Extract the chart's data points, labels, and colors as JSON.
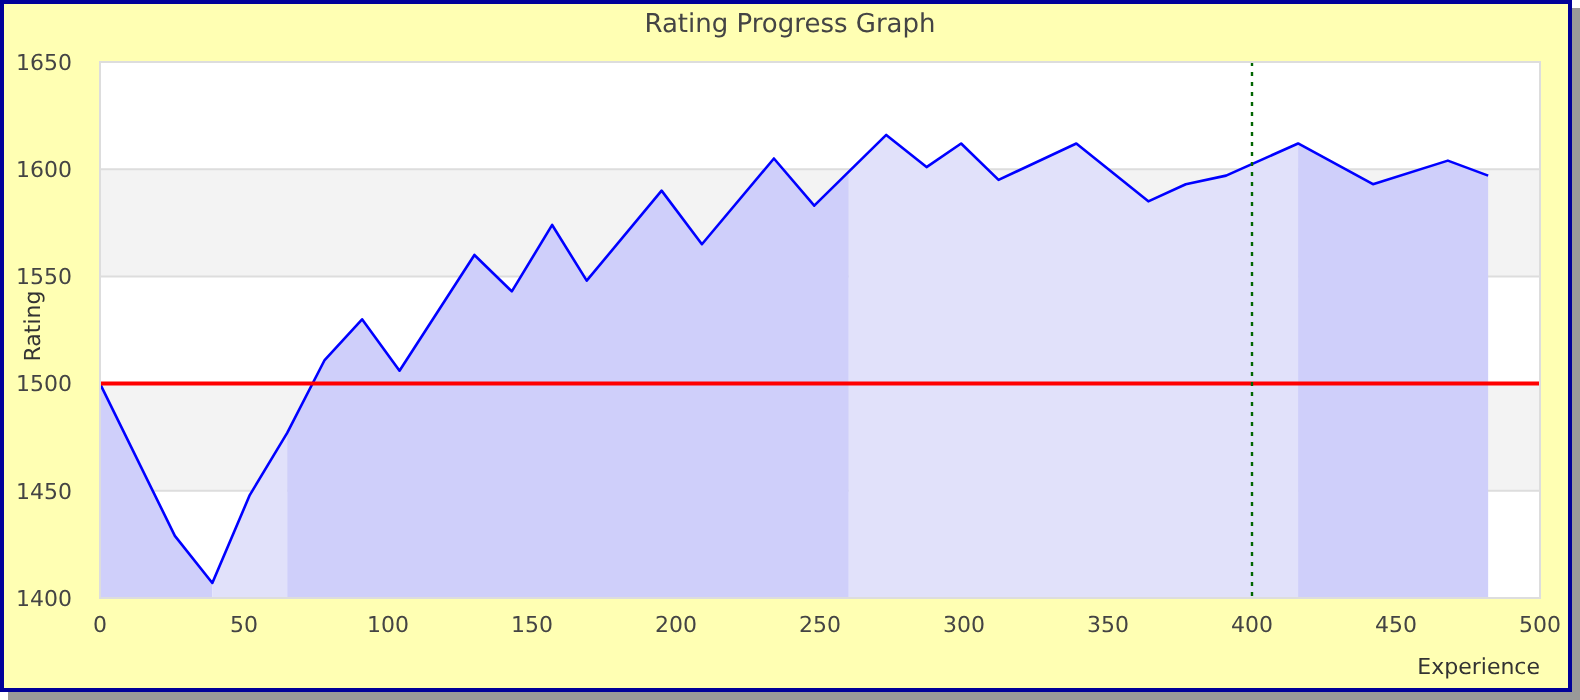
{
  "chart_data": {
    "type": "area",
    "title": "Rating Progress Graph",
    "xlabel": "Experience",
    "ylabel": "Rating",
    "xlim": [
      0,
      500
    ],
    "ylim": [
      1400,
      1650
    ],
    "xticks": [
      0,
      50,
      100,
      150,
      200,
      250,
      300,
      350,
      400,
      450,
      500
    ],
    "yticks": [
      1400,
      1450,
      1500,
      1550,
      1600,
      1650
    ],
    "grid": "y",
    "series": [
      {
        "color": "#cfcffa",
        "x": [
          0,
          26,
          39
        ],
        "values": [
          1500,
          1429,
          1407
        ]
      },
      {
        "color": "#e1e1fa",
        "x": [
          39,
          52,
          65
        ],
        "values": [
          1407,
          1448,
          1477
        ]
      },
      {
        "color": "#cfcffa",
        "x": [
          65,
          78,
          91,
          104,
          130,
          143,
          157,
          169,
          195,
          209,
          234,
          248,
          260
        ],
        "values": [
          1477,
          1511,
          1530,
          1506,
          1560,
          1543,
          1574,
          1548,
          1590,
          1565,
          1605,
          1583,
          1598
        ]
      },
      {
        "color": "#e1e1fa",
        "x": [
          260,
          273,
          287,
          299,
          312,
          339,
          364,
          377,
          391,
          416
        ],
        "values": [
          1598,
          1616,
          1601,
          1612,
          1595,
          1612,
          1585,
          1593,
          1597,
          1612
        ]
      },
      {
        "color": "#cfcffa",
        "x": [
          416,
          442,
          468,
          482
        ],
        "values": [
          1612,
          1593,
          1604,
          1597
        ]
      },
      {
        "type": "line",
        "color": "#0000ff",
        "x": [
          0,
          26,
          39,
          52,
          65,
          78,
          91,
          104,
          130,
          143,
          157,
          169,
          195,
          209,
          234,
          248,
          273,
          287,
          299,
          312,
          339,
          364,
          377,
          391,
          416,
          442,
          468,
          482
        ],
        "values": [
          1500,
          1429,
          1407,
          1448,
          1477,
          1511,
          1530,
          1506,
          1560,
          1543,
          1574,
          1548,
          1590,
          1565,
          1605,
          1583,
          1616,
          1601,
          1612,
          1595,
          1612,
          1585,
          1593,
          1597,
          1612,
          1593,
          1604,
          1597
        ]
      }
    ],
    "ref_lines": [
      {
        "axis": "y",
        "value": 1500,
        "color": "#ff0000",
        "line_style": "solid"
      },
      {
        "axis": "x",
        "value": 400,
        "color": "#006600",
        "line_style": "dotted"
      }
    ]
  }
}
